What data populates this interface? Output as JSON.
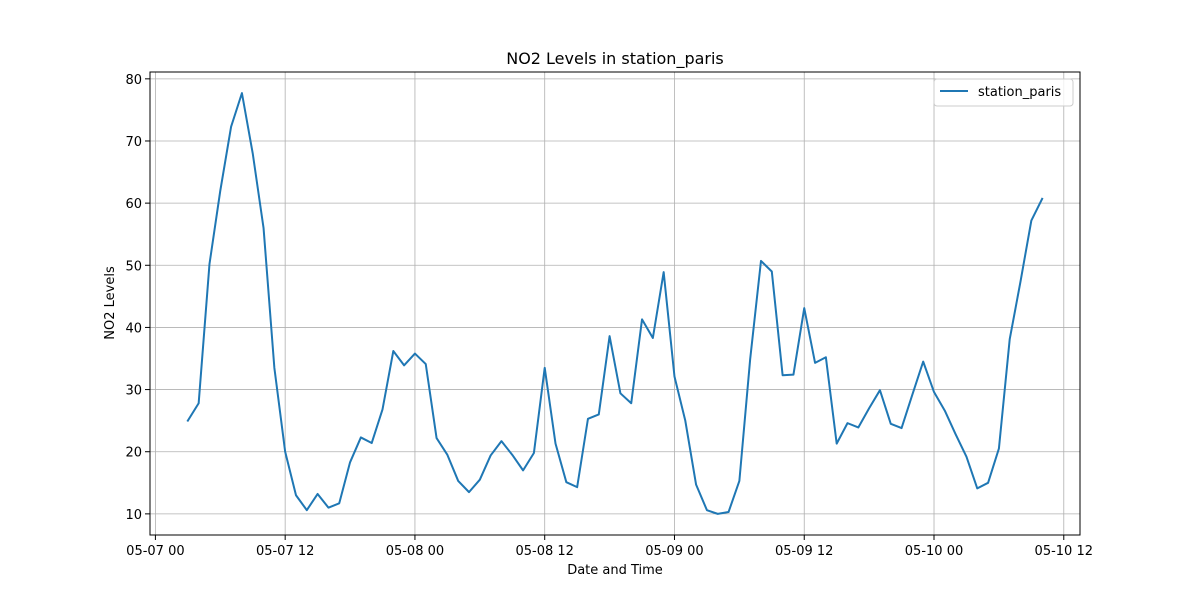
{
  "chart_data": {
    "type": "line",
    "title": "NO2 Levels in station_paris",
    "xlabel": "Date and Time",
    "ylabel": "NO2 Levels",
    "x_type": "datetime",
    "x_start": "2024-05-07 03:00",
    "x_step_hours": 1,
    "xlim": [
      "2024-05-06 23:30",
      "2024-05-10 13:30"
    ],
    "ylim": [
      6.6,
      81.1
    ],
    "xticks": [
      {
        "value": "2024-05-07 00:00",
        "label": "05-07 00"
      },
      {
        "value": "2024-05-07 12:00",
        "label": "05-07 12"
      },
      {
        "value": "2024-05-08 00:00",
        "label": "05-08 00"
      },
      {
        "value": "2024-05-08 12:00",
        "label": "05-08 12"
      },
      {
        "value": "2024-05-09 00:00",
        "label": "05-09 00"
      },
      {
        "value": "2024-05-09 12:00",
        "label": "05-09 12"
      },
      {
        "value": "2024-05-10 00:00",
        "label": "05-10 00"
      },
      {
        "value": "2024-05-10 12:00",
        "label": "05-10 12"
      }
    ],
    "yticks": [
      10,
      20,
      30,
      40,
      50,
      60,
      70,
      80
    ],
    "grid": true,
    "legend_position": "top-right",
    "series": [
      {
        "name": "station_paris",
        "color": "#1f77b4",
        "values": [
          25.0,
          27.8,
          50.2,
          62.0,
          72.3,
          77.7,
          68.0,
          56.0,
          33.5,
          20.0,
          13.0,
          10.6,
          13.2,
          11.0,
          11.7,
          18.3,
          22.3,
          21.4,
          26.8,
          36.2,
          33.9,
          35.8,
          34.1,
          22.2,
          19.5,
          15.3,
          13.5,
          15.5,
          19.4,
          21.7,
          19.5,
          17.0,
          19.8,
          33.5,
          21.3,
          15.1,
          14.3,
          25.3,
          26.0,
          38.6,
          29.4,
          27.8,
          41.3,
          38.3,
          48.9,
          32.1,
          25.0,
          14.7,
          10.6,
          10.0,
          10.3,
          15.3,
          34.9,
          50.7,
          49.0,
          32.3,
          32.4,
          43.1,
          34.3,
          35.2,
          21.3,
          24.6,
          23.9,
          27.0,
          29.9,
          24.5,
          23.8,
          29.2,
          34.5,
          29.6,
          26.6,
          22.8,
          19.2,
          14.1,
          15.0,
          20.5,
          38.1,
          47.4,
          57.2,
          60.7
        ]
      }
    ]
  }
}
